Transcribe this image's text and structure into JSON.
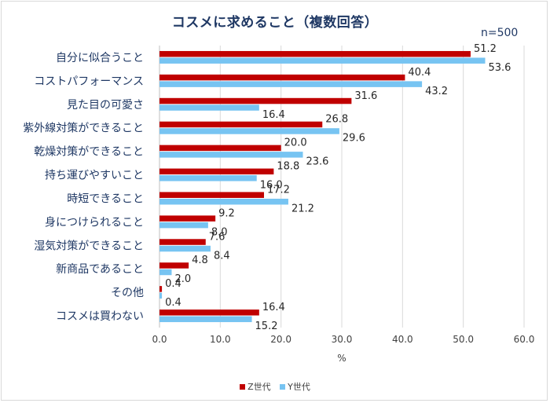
{
  "chart_data": {
    "type": "bar",
    "orientation": "horizontal",
    "title": "コスメに求めること（複数回答）",
    "annotation": "n=500",
    "categories": [
      "自分に似合うこと",
      "コストパフォーマンス",
      "見た目の可愛さ",
      "紫外線対策ができること",
      "乾燥対策ができること",
      "持ち運びやすいこと",
      "時短できること",
      "身につけられること",
      "湿気対策ができること",
      "新商品であること",
      "その他",
      "コスメは買わない"
    ],
    "series": [
      {
        "name": "Z世代",
        "color": "#c00000",
        "values": [
          51.2,
          40.4,
          31.6,
          26.8,
          20.0,
          18.8,
          17.2,
          9.2,
          7.6,
          4.8,
          0.4,
          16.4
        ]
      },
      {
        "name": "Y世代",
        "color": "#77c4f2",
        "values": [
          53.6,
          43.2,
          16.4,
          29.6,
          23.6,
          16.0,
          21.2,
          8.0,
          8.4,
          2.0,
          0.4,
          15.2
        ]
      }
    ],
    "xlabel": "%",
    "xlim": [
      0,
      60
    ],
    "xticks": [
      "0.0",
      "10.0",
      "20.0",
      "30.0",
      "40.0",
      "50.0",
      "60.0"
    ],
    "grid": true,
    "legend_position": "bottom"
  }
}
